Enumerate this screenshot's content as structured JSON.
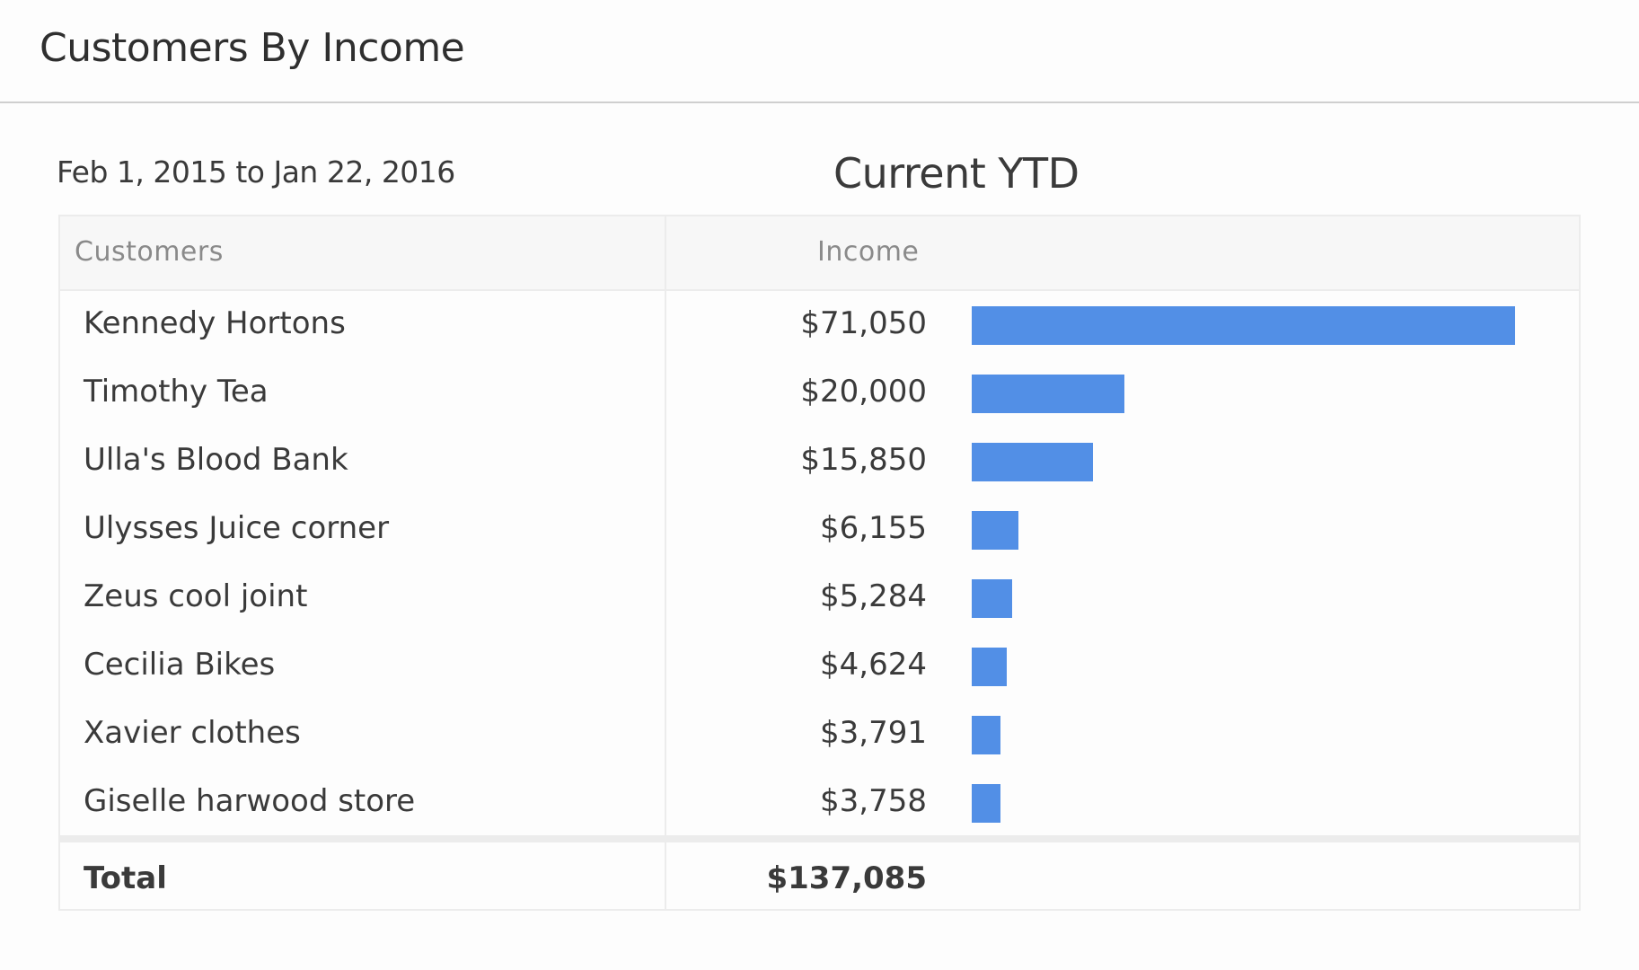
{
  "header": {
    "title": "Customers By Income"
  },
  "date_range": "Feb 1, 2015 to Jan 22, 2016",
  "period_label": "Current YTD",
  "table": {
    "columns": [
      "Customers",
      "Income"
    ],
    "rows": [
      {
        "customer": "Kennedy Hortons",
        "income": "$71,050"
      },
      {
        "customer": "Timothy Tea",
        "income": "$20,000"
      },
      {
        "customer": "Ulla's Blood Bank",
        "income": "$15,850"
      },
      {
        "customer": "Ulysses Juice corner",
        "income": "$6,155"
      },
      {
        "customer": "Zeus cool joint",
        "income": "$5,284"
      },
      {
        "customer": "Cecilia Bikes",
        "income": "$4,624"
      },
      {
        "customer": "Xavier clothes",
        "income": "$3,791"
      },
      {
        "customer": "Giselle harwood store",
        "income": "$3,758"
      }
    ],
    "total_label": "Total",
    "total_value": "$137,085"
  },
  "colors": {
    "bar": "#528fe6"
  },
  "chart_data": {
    "type": "bar",
    "orientation": "horizontal",
    "title": "Customers By Income",
    "subtitle": "Current YTD",
    "date_range": "Feb 1, 2015 to Jan 22, 2016",
    "categories": [
      "Kennedy Hortons",
      "Timothy Tea",
      "Ulla's Blood Bank",
      "Ulysses Juice corner",
      "Zeus cool joint",
      "Cecilia Bikes",
      "Xavier clothes",
      "Giselle harwood store"
    ],
    "values": [
      71050,
      20000,
      15850,
      6155,
      5284,
      4624,
      3791,
      3758
    ],
    "total": 137085,
    "xlabel": "Income",
    "ylabel": "Customers",
    "grid": false,
    "legend": null
  }
}
